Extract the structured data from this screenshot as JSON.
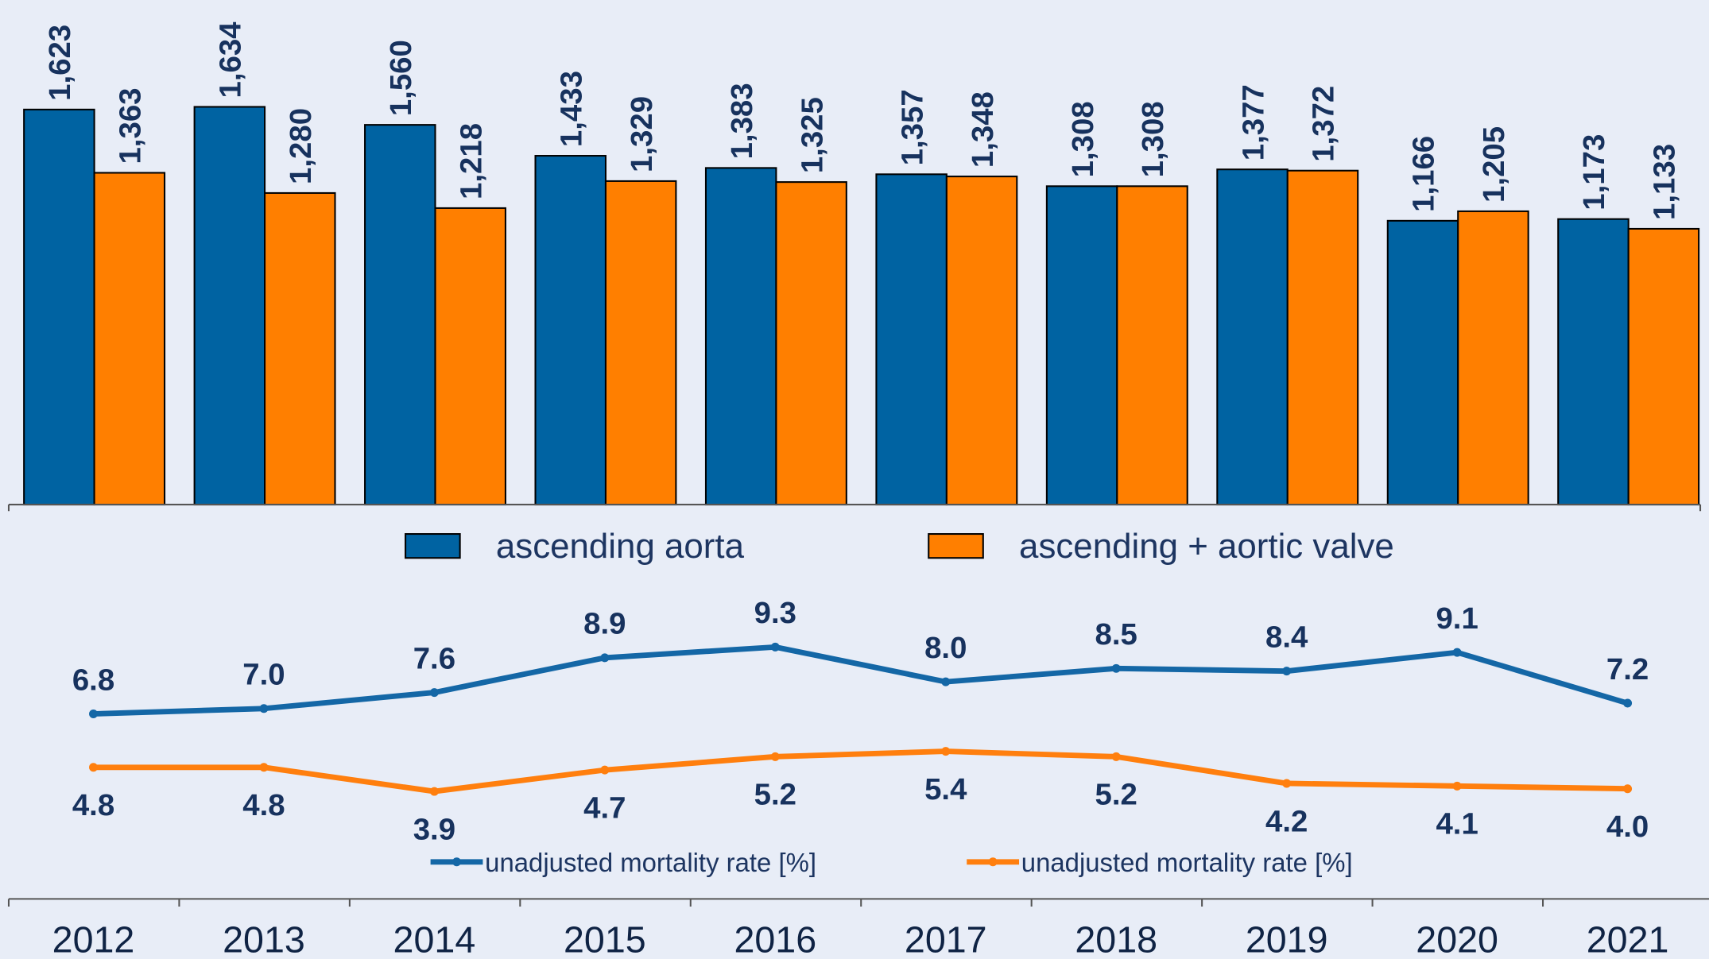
{
  "chart_data": [
    {
      "type": "bar",
      "categories": [
        "2012",
        "2013",
        "2014",
        "2015",
        "2016",
        "2017",
        "2018",
        "2019",
        "2020",
        "2021"
      ],
      "ylim": [
        0,
        2050
      ],
      "legend": "bottom",
      "series": [
        {
          "name": "ascending aorta",
          "color": "#0063a2",
          "values": [
            1623,
            1634,
            1560,
            1433,
            1383,
            1357,
            1308,
            1377,
            1166,
            1173
          ],
          "value_labels": [
            "1,623",
            "1,634",
            "1,560",
            "1,433",
            "1,383",
            "1,357",
            "1,308",
            "1,377",
            "1,166",
            "1,173"
          ]
        },
        {
          "name": "ascending + aortic valve",
          "color": "#ff7f00",
          "values": [
            1363,
            1280,
            1218,
            1329,
            1325,
            1348,
            1308,
            1372,
            1205,
            1133
          ],
          "value_labels": [
            "1,363",
            "1,280",
            "1,218",
            "1,329",
            "1,325",
            "1,348",
            "1,308",
            "1,372",
            "1,205",
            "1,133"
          ]
        }
      ]
    },
    {
      "type": "line",
      "categories": [
        "2012",
        "2013",
        "2014",
        "2015",
        "2016",
        "2017",
        "2018",
        "2019",
        "2020",
        "2021"
      ],
      "ylim": [
        0,
        11.9
      ],
      "legend": "bottom",
      "series": [
        {
          "name": "unadjusted mortality rate [%]",
          "color": "#1467a6",
          "values": [
            6.8,
            7.0,
            7.6,
            8.9,
            9.3,
            8.0,
            8.5,
            8.4,
            9.1,
            7.2
          ],
          "value_labels": [
            "6.8",
            "7.0",
            "7.6",
            "8.9",
            "9.3",
            "8.0",
            "8.5",
            "8.4",
            "9.1",
            "7.2"
          ]
        },
        {
          "name": "unadjusted mortality rate [%]",
          "color": "#ff7f0e",
          "values": [
            4.8,
            4.8,
            3.9,
            4.7,
            5.2,
            5.4,
            5.2,
            4.2,
            4.1,
            4.0
          ],
          "value_labels": [
            "4.8",
            "4.8",
            "3.9",
            "4.7",
            "5.2",
            "5.4",
            "5.2",
            "4.2",
            "4.1",
            "4.0"
          ]
        }
      ]
    }
  ]
}
